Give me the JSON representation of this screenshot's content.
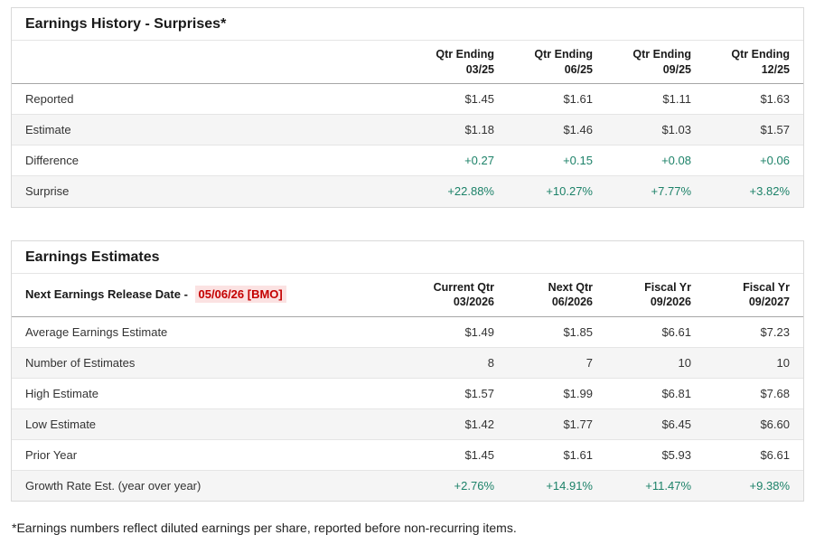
{
  "colors": {
    "green": "#1d8269",
    "red": "#c40000",
    "red_bg": "#fbe2e2"
  },
  "table1": {
    "title": "Earnings History - Surprises*",
    "columns": [
      {
        "line1": "Qtr Ending",
        "line2": "03/25"
      },
      {
        "line1": "Qtr Ending",
        "line2": "06/25"
      },
      {
        "line1": "Qtr Ending",
        "line2": "09/25"
      },
      {
        "line1": "Qtr Ending",
        "line2": "12/25"
      }
    ],
    "rows": [
      {
        "label": "Reported",
        "values": [
          "$1.45",
          "$1.61",
          "$1.11",
          "$1.63"
        ]
      },
      {
        "label": "Estimate",
        "values": [
          "$1.18",
          "$1.46",
          "$1.03",
          "$1.57"
        ]
      },
      {
        "label": "Difference",
        "values": [
          "+0.27",
          "+0.15",
          "+0.08",
          "+0.06"
        ]
      },
      {
        "label": "Surprise",
        "values": [
          "+22.88%",
          "+10.27%",
          "+7.77%",
          "+3.82%"
        ]
      }
    ]
  },
  "table2": {
    "title": "Earnings Estimates",
    "release_label": "Next Earnings Release Date - ",
    "release_date": "05/06/26 [BMO]",
    "columns": [
      {
        "line1": "Current Qtr",
        "line2": "03/2026"
      },
      {
        "line1": "Next Qtr",
        "line2": "06/2026"
      },
      {
        "line1": "Fiscal Yr",
        "line2": "09/2026"
      },
      {
        "line1": "Fiscal Yr",
        "line2": "09/2027"
      }
    ],
    "rows": [
      {
        "label": "Average Earnings Estimate",
        "values": [
          "$1.49",
          "$1.85",
          "$6.61",
          "$7.23"
        ]
      },
      {
        "label": "Number of Estimates",
        "values": [
          "8",
          "7",
          "10",
          "10"
        ]
      },
      {
        "label": "High Estimate",
        "values": [
          "$1.57",
          "$1.99",
          "$6.81",
          "$7.68"
        ]
      },
      {
        "label": "Low Estimate",
        "values": [
          "$1.42",
          "$1.77",
          "$6.45",
          "$6.60"
        ]
      },
      {
        "label": "Prior Year",
        "values": [
          "$1.45",
          "$1.61",
          "$5.93",
          "$6.61"
        ]
      },
      {
        "label": "Growth Rate Est. (year over year)",
        "values": [
          "+2.76%",
          "+14.91%",
          "+11.47%",
          "+9.38%"
        ]
      }
    ]
  },
  "footnote": "*Earnings numbers reflect diluted earnings per share, reported before non-recurring items."
}
